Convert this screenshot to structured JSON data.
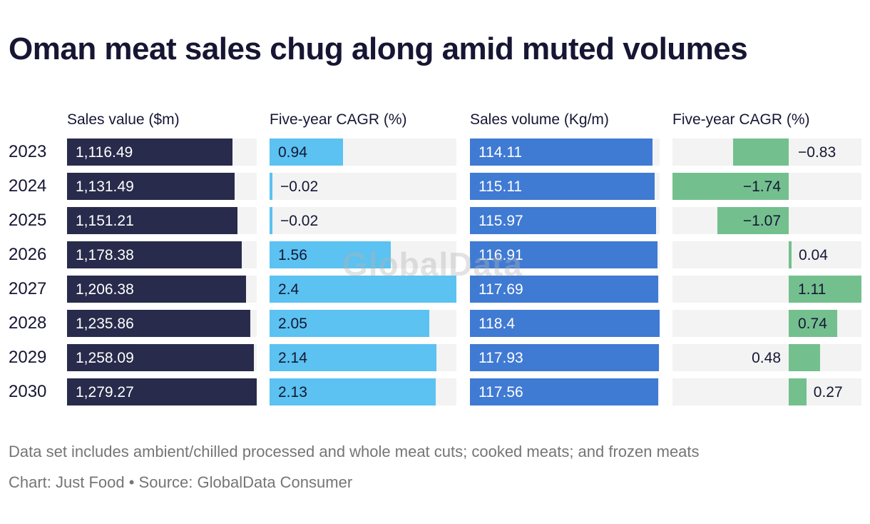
{
  "title": "Oman meat sales chug along amid muted volumes",
  "watermark": "GlobalData",
  "footnote": "Data set includes ambient/chilled processed and whole meat cuts; cooked meats; and frozen meats",
  "credit": "Chart: Just Food • Source: GlobalData Consumer",
  "colors": {
    "title_text": "#161634",
    "sales_value_bar": "#282b4b",
    "value_cagr_bar": "#5bc2f1",
    "sales_volume_bar": "#3f7ad3",
    "volume_cagr_bar": "#73c08e",
    "track": "#f2f3f2",
    "label_on_dark": "#ffffff",
    "label_dark": "#161634",
    "footer_text": "#757575"
  },
  "chart_data": {
    "type": "bar",
    "title": "Oman meat sales chug along amid muted volumes",
    "categories": [
      "2023",
      "2024",
      "2025",
      "2026",
      "2027",
      "2028",
      "2029",
      "2030"
    ],
    "grid": false,
    "legend": "none",
    "series": [
      {
        "name": "Sales value ($m)",
        "values": [
          1116.49,
          1131.49,
          1151.21,
          1178.38,
          1206.38,
          1235.86,
          1258.09,
          1279.27
        ],
        "labels": [
          "1,116.49",
          "1,131.49",
          "1,151.21",
          "1,178.38",
          "1,206.38",
          "1,235.86",
          "1,258.09",
          "1,279.27"
        ],
        "axis_min": 0,
        "axis_max": 1279.27,
        "style": "left",
        "color_key": "sales_value_bar",
        "label_inside": "light"
      },
      {
        "name": "Five-year CAGR (%)",
        "values": [
          0.94,
          -0.02,
          -0.02,
          1.56,
          2.4,
          2.05,
          2.14,
          2.13
        ],
        "labels": [
          "0.94",
          "−0.02",
          "−0.02",
          "1.56",
          "2.4",
          "2.05",
          "2.14",
          "2.13"
        ],
        "axis_min": 0,
        "axis_max": 2.4,
        "style": "left",
        "color_key": "value_cagr_bar",
        "label_inside": "dark"
      },
      {
        "name": "Sales volume (Kg/m)",
        "values": [
          114.11,
          115.11,
          115.97,
          116.91,
          117.69,
          118.4,
          117.93,
          117.56
        ],
        "labels": [
          "114.11",
          "115.11",
          "115.97",
          "116.91",
          "117.69",
          "118.4",
          "117.93",
          "117.56"
        ],
        "axis_min": 0,
        "axis_max": 118.4,
        "style": "left",
        "color_key": "sales_volume_bar",
        "label_inside": "light"
      },
      {
        "name": "Five-year CAGR (%)",
        "values": [
          -0.83,
          -1.74,
          -1.07,
          0.04,
          1.11,
          0.74,
          0.48,
          0.27
        ],
        "labels": [
          "−0.83",
          "−1.74",
          "−1.07",
          "0.04",
          "1.11",
          "0.74",
          "0.48",
          "0.27"
        ],
        "axis_min": -1.74,
        "axis_max": 1.11,
        "style": "diverging",
        "color_key": "volume_cagr_bar",
        "label_inside": "dark",
        "label_modes": [
          "after-zero",
          "before-zero",
          "before-zero",
          "after-bar",
          "after-zero",
          "after-zero",
          "before-zero",
          "after-bar"
        ]
      }
    ]
  }
}
